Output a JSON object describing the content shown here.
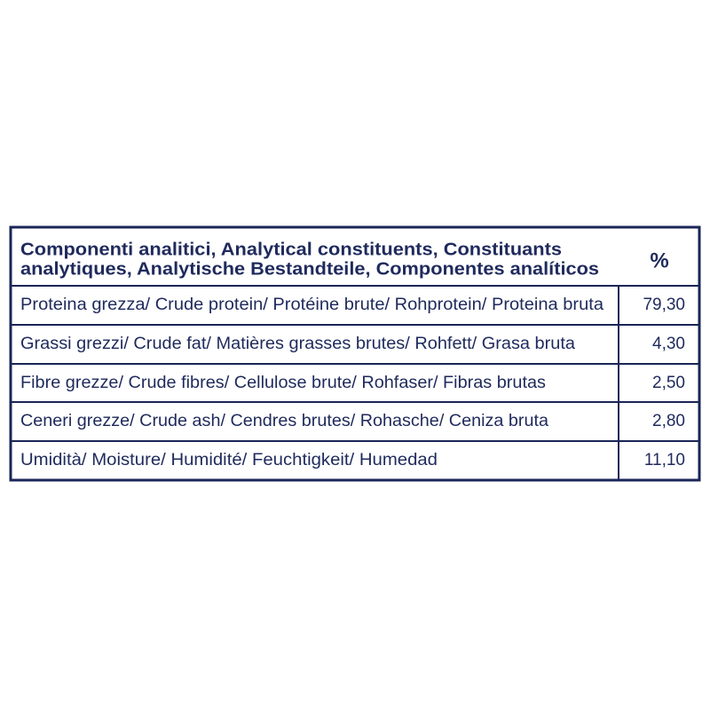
{
  "table": {
    "header": {
      "label_lines": [
        "Componenti analitici, Analytical constituents, Constituants",
        "analytiques, Analytische Bestandteile, Componentes analíticos"
      ],
      "unit": "%"
    },
    "rows": [
      [
        "Proteina grezza/ Crude protein/ Protéine brute/ Rohprotein/ Proteina bruta",
        "79,30"
      ],
      [
        "Grassi grezzi/ Crude fat/ Matières grasses brutes/ Rohfett/ Grasa bruta",
        "4,30"
      ],
      [
        "Fibre grezze/ Crude fibres/ Cellulose brute/ Rohfaser/ Fibras brutas",
        "2,50"
      ],
      [
        "Ceneri grezze/ Crude ash/ Cendres brutes/ Rohasche/ Ceniza bruta",
        "2,80"
      ],
      [
        "Umidità/ Moisture/ Humidité/ Feuchtigkeit/ Humedad",
        "11,10"
      ]
    ]
  }
}
